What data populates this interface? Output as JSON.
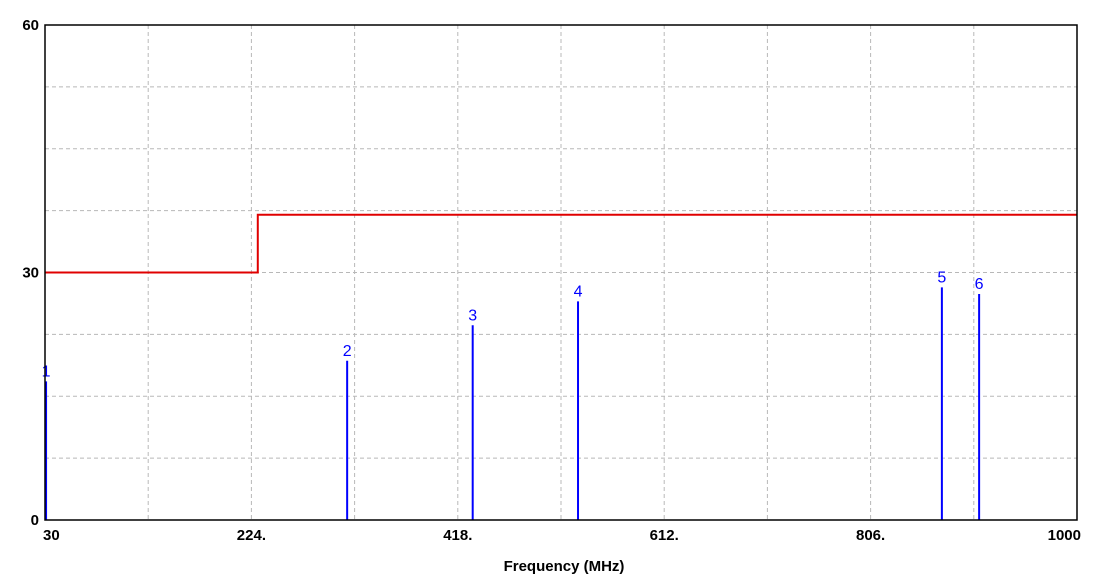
{
  "chart_data": {
    "type": "line",
    "xlabel": "Frequency (MHz)",
    "ylabel": "",
    "xlim": [
      30,
      1000
    ],
    "ylim": [
      0,
      60
    ],
    "x_tick_values": [
      30,
      224,
      418,
      612,
      806,
      1000
    ],
    "x_tick_labels": [
      "30",
      "224.",
      "418.",
      "612.",
      "806.",
      "1000"
    ],
    "y_tick_values": [
      0,
      30,
      60
    ],
    "y_tick_labels": [
      "0",
      "30",
      "60"
    ],
    "grid_x_values": [
      127,
      224,
      321,
      418,
      515,
      612,
      709,
      806,
      903
    ],
    "grid_y_values": [
      7.5,
      15,
      22.5,
      30,
      37.5,
      45,
      52.5
    ],
    "grid": true,
    "limit_line": {
      "color": "#e00000",
      "points": [
        [
          30,
          30
        ],
        [
          230,
          30
        ],
        [
          230,
          37
        ],
        [
          1000,
          37
        ]
      ]
    },
    "markers": {
      "color": "#0000ff",
      "items": [
        {
          "label": "1",
          "x": 31,
          "y": 16.8
        },
        {
          "label": "2",
          "x": 314,
          "y": 19.3
        },
        {
          "label": "3",
          "x": 432,
          "y": 23.6
        },
        {
          "label": "4",
          "x": 531,
          "y": 26.5
        },
        {
          "label": "5",
          "x": 873,
          "y": 28.2
        },
        {
          "label": "6",
          "x": 908,
          "y": 27.4
        }
      ]
    }
  }
}
